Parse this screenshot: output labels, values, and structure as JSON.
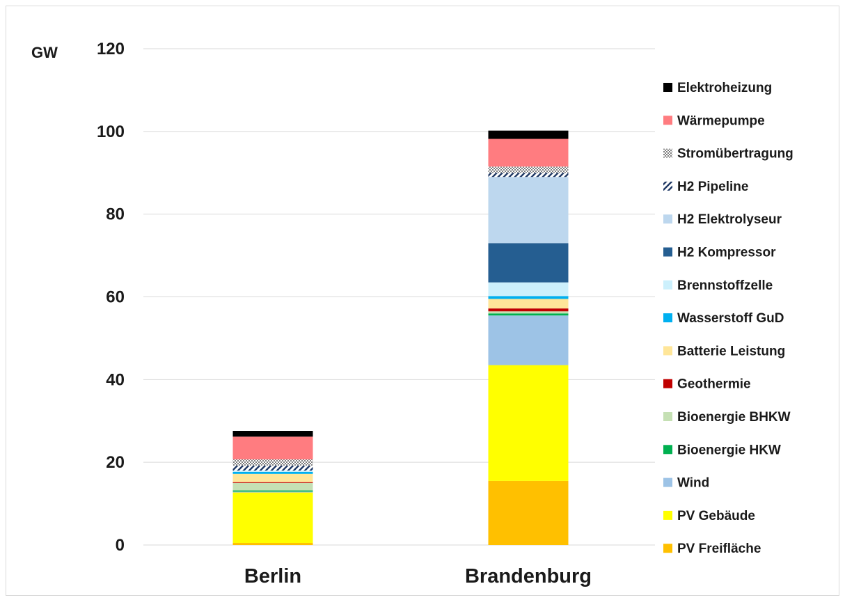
{
  "chart_data": {
    "type": "bar",
    "stacked": true,
    "unit_label": "GW",
    "categories": [
      "Berlin",
      "Brandenburg"
    ],
    "ylim": [
      0,
      120
    ],
    "yticks": [
      0,
      20,
      40,
      60,
      80,
      100,
      120
    ],
    "grid": true,
    "legend_position": "right",
    "series": [
      {
        "name": "PV Freifläche",
        "color": "#ffc000",
        "pattern": "solid",
        "values": [
          0.5,
          15.5
        ]
      },
      {
        "name": "PV Gebäude",
        "color": "#ffff00",
        "pattern": "solid",
        "values": [
          12.2,
          28.0
        ]
      },
      {
        "name": "Wind",
        "color": "#9dc3e6",
        "pattern": "solid",
        "values": [
          0.2,
          12.0
        ]
      },
      {
        "name": "Bioenergie HKW",
        "color": "#00b050",
        "pattern": "solid",
        "values": [
          0.3,
          0.5
        ]
      },
      {
        "name": "Bioenergie BHKW",
        "color": "#c5e0b4",
        "pattern": "solid",
        "values": [
          1.8,
          0.5
        ]
      },
      {
        "name": "Geothermie",
        "color": "#c00000",
        "pattern": "solid",
        "values": [
          0.2,
          0.7
        ]
      },
      {
        "name": "Batterie Leistung",
        "color": "#ffe699",
        "pattern": "solid",
        "values": [
          2.0,
          2.3
        ]
      },
      {
        "name": "Wasserstoff GuD",
        "color": "#00b0f0",
        "pattern": "solid",
        "values": [
          0.5,
          0.7
        ]
      },
      {
        "name": "Brennstoffzelle",
        "color": "#ccf0fc",
        "pattern": "solid",
        "values": [
          0.3,
          3.3
        ]
      },
      {
        "name": "H2 Kompressor",
        "color": "#255e91",
        "pattern": "solid",
        "values": [
          0.0,
          9.5
        ]
      },
      {
        "name": "H2 Elektrolyseur",
        "color": "#bdd7ee",
        "pattern": "solid",
        "values": [
          0.0,
          16.0
        ]
      },
      {
        "name": "H2 Pipeline",
        "color": "#1f3864",
        "pattern": "hatch",
        "values": [
          1.2,
          1.0
        ]
      },
      {
        "name": "Stromübertragung",
        "color": "#7f7f7f",
        "pattern": "dots",
        "values": [
          1.5,
          1.5
        ]
      },
      {
        "name": "Wärmepumpe",
        "color": "#ff7c80",
        "pattern": "solid",
        "values": [
          5.5,
          6.7
        ]
      },
      {
        "name": "Elektroheizung",
        "color": "#000000",
        "pattern": "solid",
        "values": [
          1.4,
          2.0
        ]
      }
    ]
  }
}
